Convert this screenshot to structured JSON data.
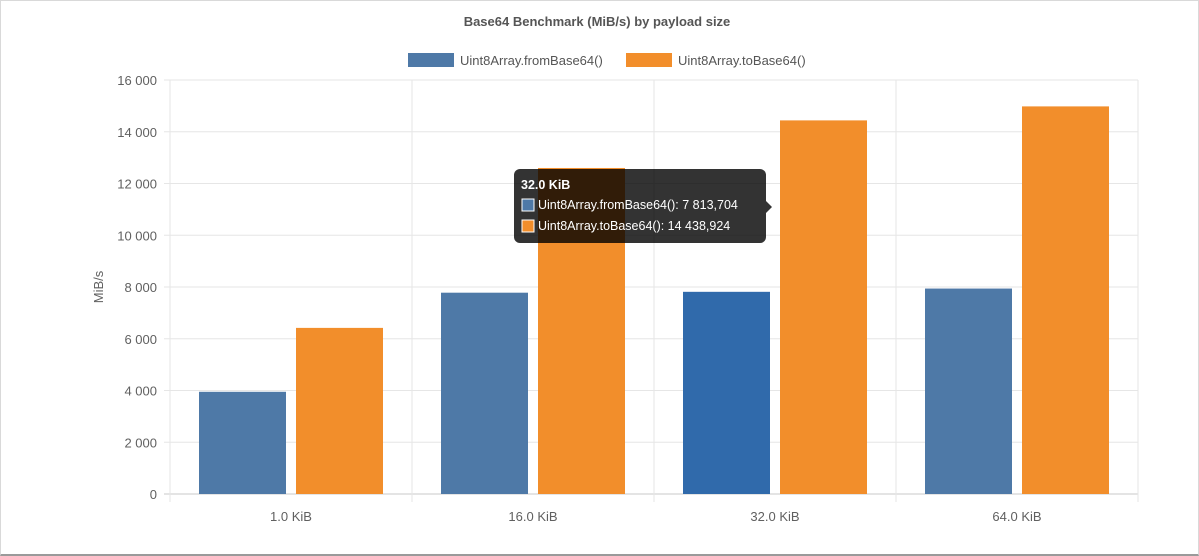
{
  "chart_data": {
    "type": "bar",
    "title": "Base64 Benchmark (MiB/s) by payload size",
    "xlabel": "",
    "ylabel": "MiB/s",
    "categories": [
      "1.0 KiB",
      "16.0 KiB",
      "32.0 KiB",
      "64.0 KiB"
    ],
    "ylim": [
      0,
      16000
    ],
    "yticks": [
      0,
      2000,
      4000,
      6000,
      8000,
      10000,
      12000,
      14000,
      16000
    ],
    "ytick_labels": [
      "0",
      "2 000",
      "4 000",
      "6 000",
      "8 000",
      "10 000",
      "12 000",
      "14 000",
      "16 000"
    ],
    "grid": true,
    "legend_position": "top",
    "series": [
      {
        "name": "Uint8Array.fromBase64()",
        "color": "#4e79a7",
        "values": [
          3950,
          7780,
          7813.704,
          7940
        ]
      },
      {
        "name": "Uint8Array.toBase64()",
        "color": "#f28e2b",
        "values": [
          6420,
          12600,
          14438.924,
          14980
        ]
      }
    ],
    "highlight": {
      "category_index": 2,
      "color": "#306aab"
    },
    "tooltip": {
      "title": "32.0 KiB",
      "lines": [
        "Uint8Array.fromBase64(): 7 813,704",
        "Uint8Array.toBase64(): 14 438,924"
      ]
    }
  }
}
